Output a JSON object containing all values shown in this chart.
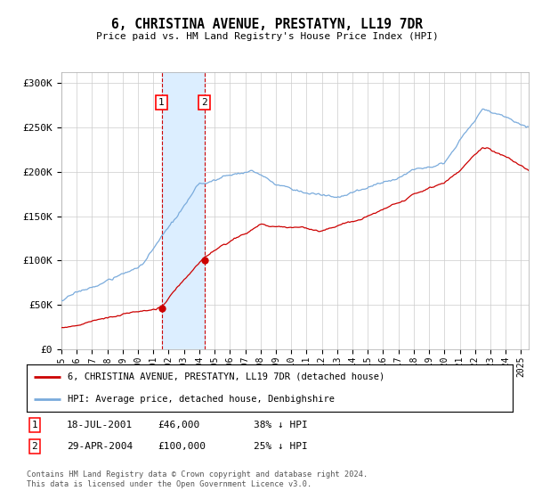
{
  "title": "6, CHRISTINA AVENUE, PRESTATYN, LL19 7DR",
  "subtitle": "Price paid vs. HM Land Registry's House Price Index (HPI)",
  "ylabel_ticks": [
    "£0",
    "£50K",
    "£100K",
    "£150K",
    "£200K",
    "£250K",
    "£300K"
  ],
  "ytick_values": [
    0,
    50000,
    100000,
    150000,
    200000,
    250000,
    300000
  ],
  "ylim": [
    0,
    312000
  ],
  "xlim_start": 1995.0,
  "xlim_end": 2025.5,
  "sale1_date": 2001.54,
  "sale1_price": 46000,
  "sale1_label": "1",
  "sale2_date": 2004.33,
  "sale2_price": 100000,
  "sale2_label": "2",
  "sale_color": "#cc0000",
  "hpi_color": "#7aabdc",
  "shade_color": "#dceeff",
  "dashed_line_color": "#cc0000",
  "legend_line1": "6, CHRISTINA AVENUE, PRESTATYN, LL19 7DR (detached house)",
  "legend_line2": "HPI: Average price, detached house, Denbighshire",
  "footer": "Contains HM Land Registry data © Crown copyright and database right 2024.\nThis data is licensed under the Open Government Licence v3.0.",
  "background_color": "#ffffff",
  "grid_color": "#cccccc",
  "xtick_years": [
    1995,
    1996,
    1997,
    1998,
    1999,
    2000,
    2001,
    2002,
    2003,
    2004,
    2005,
    2006,
    2007,
    2008,
    2009,
    2010,
    2011,
    2012,
    2013,
    2014,
    2015,
    2016,
    2017,
    2018,
    2019,
    2020,
    2021,
    2022,
    2023,
    2024,
    2025
  ]
}
